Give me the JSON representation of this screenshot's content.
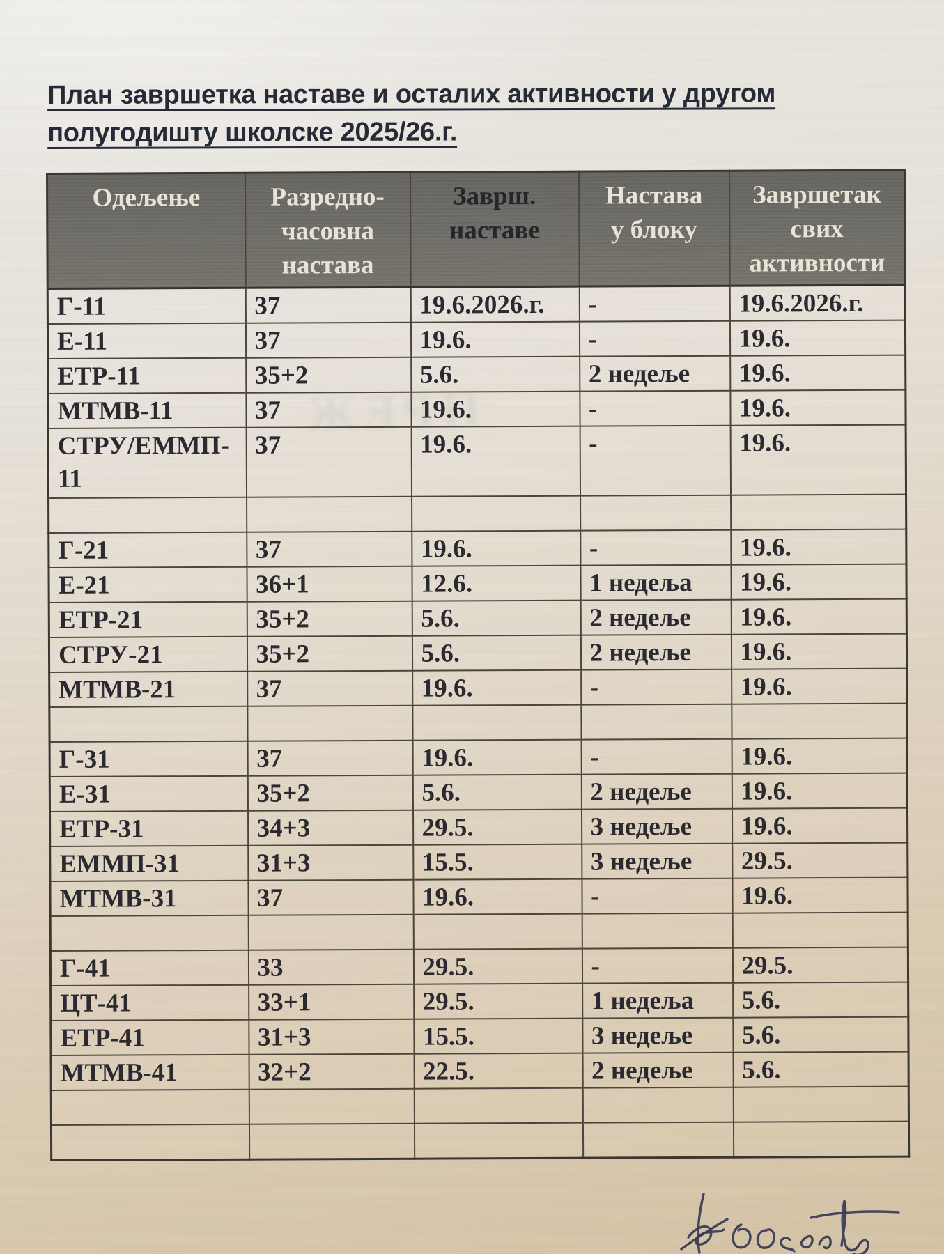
{
  "document": {
    "title_line1": "План завршетка наставе и осталих активности у другом",
    "title_line2": "полугодишту школске 2025/26.г."
  },
  "table": {
    "headers": [
      {
        "label": "Одељење",
        "lines": [
          "Одељење"
        ],
        "dark_text": false
      },
      {
        "label": "Разредно-часовна настава",
        "lines": [
          "Разредно-",
          "часовна",
          "настава"
        ],
        "dark_text": false
      },
      {
        "label": "Заврш. наставе",
        "lines": [
          "Заврш.",
          "наставе"
        ],
        "dark_text": true
      },
      {
        "label": "Настава у блоку",
        "lines": [
          "Настава",
          "у блоку"
        ],
        "dark_text": false
      },
      {
        "label": "Завршетак свих активности",
        "lines": [
          "Завршетак",
          "свих",
          "активности"
        ],
        "dark_text": false
      }
    ],
    "rows": [
      [
        "Г-11",
        "37",
        "19.6.2026.г.",
        "-",
        "19.6.2026.г."
      ],
      [
        "Е-11",
        "37",
        "19.6.",
        "-",
        "19.6."
      ],
      [
        "ЕТР-11",
        "35+2",
        "5.6.",
        "2 недеље",
        "19.6."
      ],
      [
        "МТМВ-11",
        "37",
        "19.6.",
        "-",
        "19.6."
      ],
      [
        "СТРУ/ЕММП-\n11",
        "37",
        "19.6.",
        "-",
        "19.6."
      ],
      [
        "",
        "",
        "",
        "",
        ""
      ],
      [
        "Г-21",
        "37",
        "19.6.",
        "-",
        "19.6."
      ],
      [
        "Е-21",
        "36+1",
        "12.6.",
        "1 недеља",
        "19.6."
      ],
      [
        "ЕТР-21",
        "35+2",
        "5.6.",
        "2 недеље",
        "19.6."
      ],
      [
        "СТРУ-21",
        "35+2",
        "5.6.",
        "2 недеље",
        "19.6."
      ],
      [
        "МТМВ-21",
        "37",
        "19.6.",
        "-",
        "19.6."
      ],
      [
        "",
        "",
        "",
        "",
        ""
      ],
      [
        "Г-31",
        "37",
        "19.6.",
        "-",
        "19.6."
      ],
      [
        "Е-31",
        "35+2",
        "5.6.",
        "2 недеље",
        "19.6."
      ],
      [
        "ЕТР-31",
        "34+3",
        "29.5.",
        "3 недеље",
        "19.6."
      ],
      [
        "ЕММП-31",
        "31+3",
        "15.5.",
        "3 недеље",
        "29.5."
      ],
      [
        "МТМВ-31",
        "37",
        "19.6.",
        "-",
        "19.6."
      ],
      [
        "",
        "",
        "",
        "",
        ""
      ],
      [
        "Г-41",
        "33",
        "29.5.",
        "-",
        "29.5."
      ],
      [
        "ЦТ-41",
        "33+1",
        "29.5.",
        "1 недеља",
        "5.6."
      ],
      [
        "ЕТР-41",
        "31+3",
        "15.5.",
        "3 недеље",
        "5.6."
      ],
      [
        "МТМВ-41",
        "32+2",
        "22.5.",
        "2 недеље",
        "5.6."
      ],
      [
        "",
        "",
        "",
        "",
        ""
      ],
      [
        "",
        "",
        "",
        "",
        ""
      ]
    ]
  },
  "annotations": {
    "bleed_through_text": "ПРЕЖ",
    "handwritten_note": "hat 60 sent"
  },
  "colors": {
    "paper_top": "#eae8e4",
    "paper_bottom": "#d5c3a6",
    "header_bg": "#73716b",
    "header_text": "#eae4d6",
    "header_text_dark": "#27262d",
    "body_ink": "#2b2a31",
    "title_ink": "#272b38",
    "border": "#4b463c",
    "signature_ink": "#363b55"
  }
}
